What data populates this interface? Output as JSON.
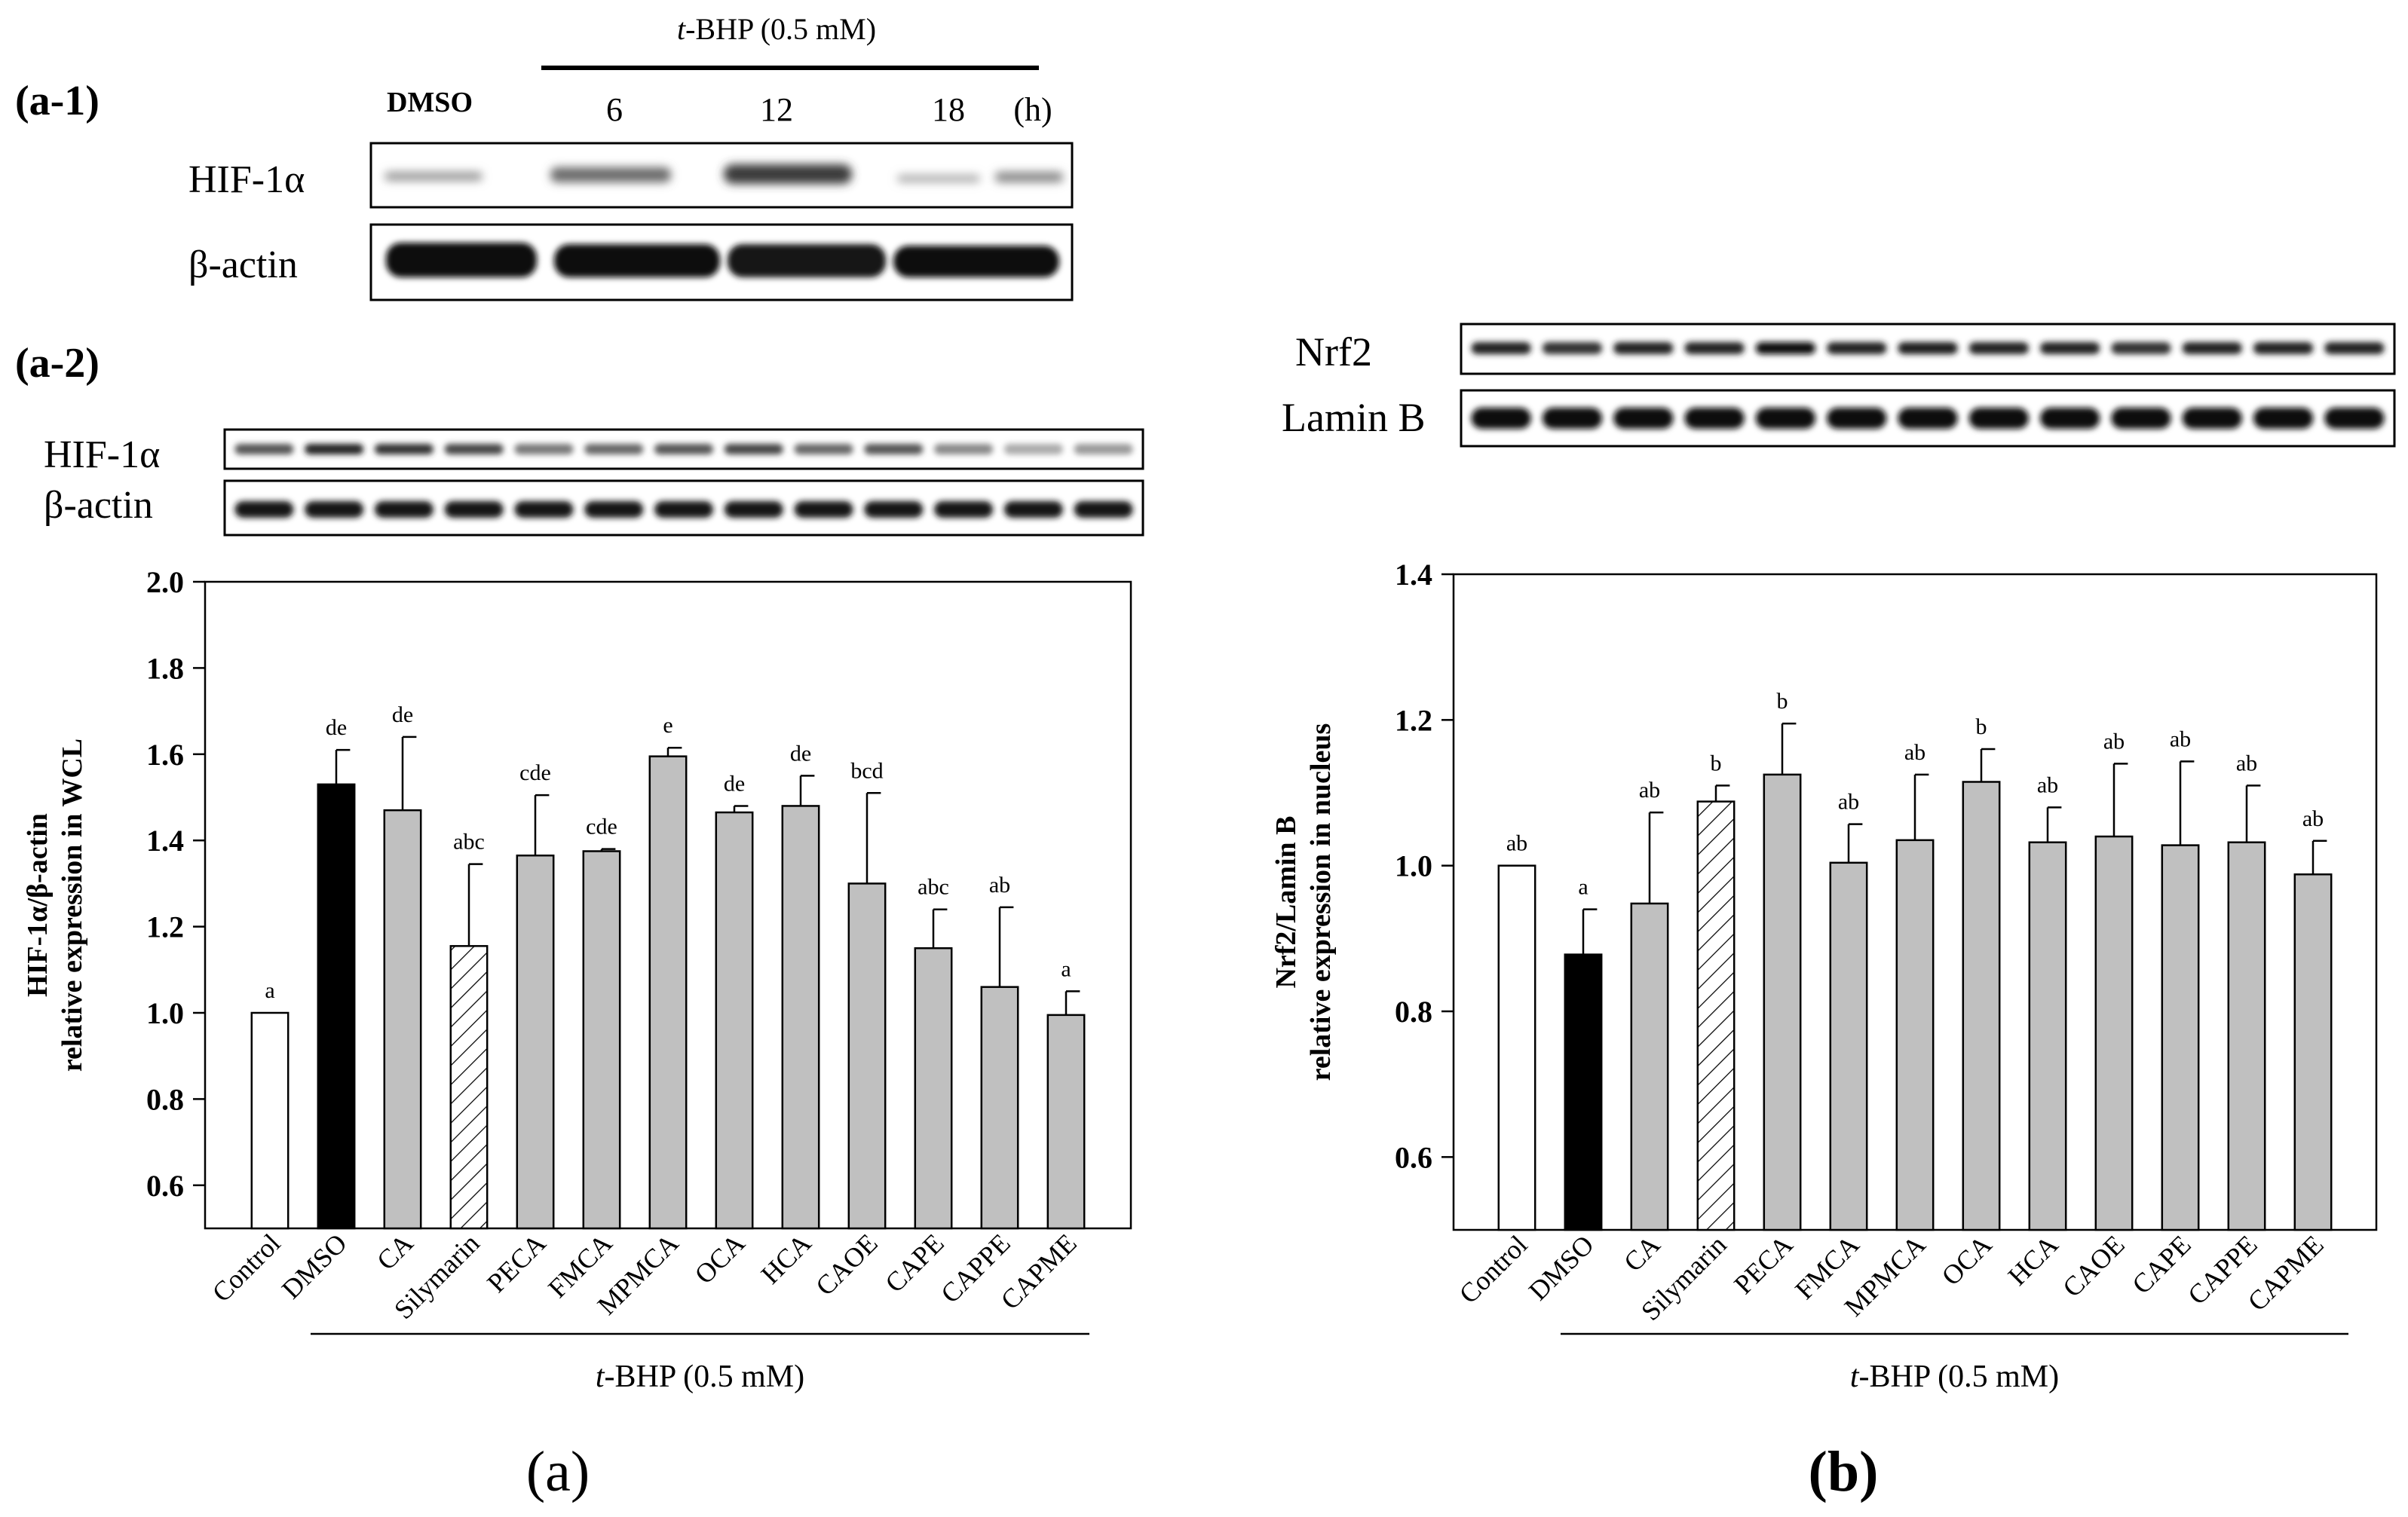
{
  "figure": {
    "panel_a1_label": "(a-1)",
    "panel_a2_label": "(a-2)",
    "panel_a_caption": "(a)",
    "panel_b_caption": "(b)",
    "timecourse": {
      "treatment_prefix": "t",
      "treatment_suffix": "-BHP (0.5 mM)",
      "lane_labels": [
        "DMSO",
        "6",
        "12",
        "18",
        "(h)"
      ]
    },
    "blots": {
      "a1_hif": "HIF-1α",
      "a1_actin": "β-actin",
      "a2_hif": "HIF-1α",
      "a2_actin": "β-actin",
      "b_nrf2": "Nrf2",
      "b_laminb": "Lamin B"
    }
  },
  "chart_data": [
    {
      "id": "a",
      "type": "bar",
      "categories": [
        "Control",
        "DMSO",
        "CA",
        "Silymarin",
        "PECA",
        "FMCA",
        "MPMCA",
        "OCA",
        "HCA",
        "CAOE",
        "CAPE",
        "CAPPE",
        "CAPME"
      ],
      "values": [
        1.0,
        1.53,
        1.47,
        1.155,
        1.365,
        1.375,
        1.595,
        1.465,
        1.48,
        1.3,
        1.15,
        1.06,
        0.995
      ],
      "errors": [
        0,
        0.08,
        0.17,
        0.19,
        0.14,
        0.005,
        0.02,
        0.015,
        0.07,
        0.21,
        0.09,
        0.185,
        0.055
      ],
      "letters": [
        "a",
        "de",
        "de",
        "abc",
        "cde",
        "cde",
        "e",
        "de",
        "de",
        "bcd",
        "abc",
        "ab",
        "a"
      ],
      "fills": [
        "white",
        "black",
        "gray",
        "hatch",
        "gray",
        "gray",
        "gray",
        "gray",
        "gray",
        "gray",
        "gray",
        "gray",
        "gray"
      ],
      "ylabel_line1": "HIF-1α/β-actin",
      "ylabel_line2": "relative expression in WCL",
      "ylim": [
        0.5,
        2.0
      ],
      "yticks": [
        0.6,
        0.8,
        1.0,
        1.2,
        1.4,
        1.6,
        1.8,
        2.0
      ],
      "ytick_labels": [
        "0.6",
        "0.8",
        "1.0",
        "1.2",
        "1.4",
        "1.6",
        "1.8",
        "2.0"
      ],
      "xlabel_prefix": "t",
      "xlabel_suffix": "-BHP (0.5 mM)"
    },
    {
      "id": "b",
      "type": "bar",
      "categories": [
        "Control",
        "DMSO",
        "CA",
        "Silymarin",
        "PECA",
        "FMCA",
        "MPMCA",
        "OCA",
        "HCA",
        "CAOE",
        "CAPE",
        "CAPPE",
        "CAPME"
      ],
      "values": [
        1.0,
        0.878,
        0.948,
        1.088,
        1.125,
        1.004,
        1.035,
        1.115,
        1.032,
        1.04,
        1.028,
        1.032,
        0.988
      ],
      "errors": [
        0,
        0.062,
        0.125,
        0.022,
        0.07,
        0.053,
        0.09,
        0.045,
        0.048,
        0.1,
        0.115,
        0.078,
        0.046
      ],
      "letters": [
        "ab",
        "a",
        "ab",
        "b",
        "b",
        "ab",
        "ab",
        "b",
        "ab",
        "ab",
        "ab",
        "ab",
        "ab"
      ],
      "fills": [
        "white",
        "black",
        "gray",
        "hatch",
        "gray",
        "gray",
        "gray",
        "gray",
        "gray",
        "gray",
        "gray",
        "gray",
        "gray"
      ],
      "ylabel_line1": "Nrf2/Lamin B",
      "ylabel_line2": "relative expression in nucleus",
      "ylim": [
        0.5,
        1.4
      ],
      "yticks": [
        0.6,
        0.8,
        1.0,
        1.2,
        1.4
      ],
      "ytick_labels": [
        "0.6",
        "0.8",
        "1.0",
        "1.2",
        "1.4"
      ],
      "xlabel_prefix": "t",
      "xlabel_suffix": "-BHP (0.5 mM)"
    }
  ]
}
